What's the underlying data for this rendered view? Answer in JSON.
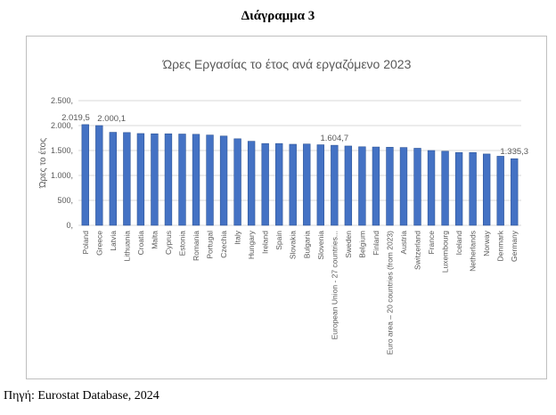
{
  "heading": "Διάγραμμα 3",
  "source": "Πηγή: Eurostat Database, 2024",
  "colors": {
    "bar": "#4472c4",
    "bar_edge": "#2f5597",
    "grid": "#d9d9d9",
    "text": "#595959"
  },
  "chart_data": {
    "type": "bar",
    "title": "Ώρες Εργασίας το έτος ανά εργαζόμενο 2023",
    "xlabel": "",
    "ylabel": "Ώρες το έτος",
    "ylim": [
      0,
      2500
    ],
    "yticks": [
      0,
      500,
      1000,
      1500,
      2000,
      2500
    ],
    "ytick_labels": [
      "0,",
      "500,",
      "1.000,",
      "1.500,",
      "2.000,",
      "2.500,"
    ],
    "grid": true,
    "categories": [
      "Poland",
      "Greece",
      "Latvia",
      "Lithuania",
      "Croatia",
      "Malta",
      "Cyprus",
      "Estonia",
      "Romania",
      "Portugal",
      "Czechia",
      "Italy",
      "Hungary",
      "Ireland",
      "Spain",
      "Slovakia",
      "Bulgaria",
      "Slovenia",
      "European Union - 27 countries...",
      "Sweden",
      "Belgium",
      "Finland",
      "Euro area – 20 countries (from 2023)",
      "Austria",
      "Switzerland",
      "France",
      "Luxembourg",
      "Iceland",
      "Netherlands",
      "Norway",
      "Denmark",
      "Germany"
    ],
    "values": [
      2019.5,
      2000.1,
      1865,
      1860,
      1840,
      1835,
      1835,
      1830,
      1825,
      1810,
      1790,
      1735,
      1685,
      1640,
      1640,
      1625,
      1630,
      1615,
      1604.7,
      1590,
      1575,
      1570,
      1565,
      1560,
      1545,
      1500,
      1485,
      1460,
      1460,
      1430,
      1385,
      1335.3
    ],
    "data_labels": [
      {
        "index": 0,
        "text": "2.019,5"
      },
      {
        "index": 1,
        "text": "2.000,1"
      },
      {
        "index": 18,
        "text": "1.604,7"
      },
      {
        "index": 31,
        "text": "1.335,3"
      }
    ]
  }
}
